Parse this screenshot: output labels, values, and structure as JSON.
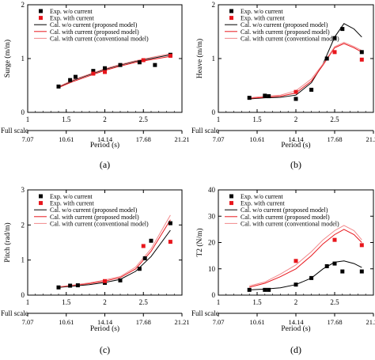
{
  "full_scale_label": "Full scale",
  "colors": {
    "black": "#000000",
    "red": "#e8161c",
    "light_red": "#f2898b"
  },
  "chart_data": [
    {
      "type": "line",
      "panel_label": "(a)",
      "xlabel": "Period (s)",
      "ylabel": "Surge (m/m)",
      "xlim": [
        1,
        3
      ],
      "ylim": [
        0,
        2
      ],
      "xticks": [
        1,
        1.5,
        2,
        2.5
      ],
      "yticks": [
        0,
        1,
        2
      ],
      "fullscale_ticks": [
        {
          "x": 1,
          "label": "7.07"
        },
        {
          "x": 1.5,
          "label": "10.61"
        },
        {
          "x": 2,
          "label": "14.14"
        },
        {
          "x": 2.5,
          "label": "17.68"
        },
        {
          "x": 3,
          "label": "21.21"
        }
      ],
      "legend": [
        {
          "label": "Exp. w/o current",
          "kind": "square",
          "color": "#000000"
        },
        {
          "label": "Exp. with current",
          "kind": "square",
          "color": "#e8161c"
        },
        {
          "label": "Cal. w/o current (proposed model)",
          "kind": "line",
          "color": "#000000"
        },
        {
          "label": "Cal. with current (proposed model)",
          "kind": "line",
          "color": "#e8161c"
        },
        {
          "label": "Cal. with current (conventional model)",
          "kind": "line",
          "color": "#f2898b"
        }
      ],
      "series": [
        {
          "name": "Exp. w/o current",
          "kind": "square",
          "color": "#000000",
          "x": [
            1.4,
            1.55,
            1.62,
            1.85,
            2.0,
            2.2,
            2.45,
            2.65,
            2.85
          ],
          "y": [
            0.48,
            0.6,
            0.66,
            0.77,
            0.82,
            0.88,
            0.93,
            0.88,
            1.07
          ]
        },
        {
          "name": "Exp. with current",
          "kind": "square",
          "color": "#e8161c",
          "x": [
            1.85,
            2.0,
            2.5,
            2.85
          ],
          "y": [
            0.72,
            0.75,
            0.97,
            1.05
          ]
        },
        {
          "name": "Cal. w/o current (proposed model)",
          "kind": "line",
          "color": "#000000",
          "x": [
            1.4,
            1.6,
            1.8,
            2.0,
            2.2,
            2.4,
            2.6,
            2.85
          ],
          "y": [
            0.47,
            0.6,
            0.7,
            0.8,
            0.88,
            0.95,
            1.0,
            1.07
          ]
        },
        {
          "name": "Cal. with current (proposed model)",
          "kind": "line",
          "color": "#e8161c",
          "x": [
            1.4,
            1.6,
            1.8,
            2.0,
            2.2,
            2.4,
            2.6,
            2.85
          ],
          "y": [
            0.46,
            0.58,
            0.68,
            0.78,
            0.86,
            0.93,
            0.98,
            1.04
          ]
        },
        {
          "name": "Cal. with current (conventional model)",
          "kind": "line",
          "color": "#f2898b",
          "x": [
            1.4,
            1.6,
            1.8,
            2.0,
            2.2,
            2.4,
            2.6,
            2.85
          ],
          "y": [
            0.48,
            0.61,
            0.71,
            0.81,
            0.89,
            0.96,
            1.02,
            1.09
          ]
        }
      ]
    },
    {
      "type": "line",
      "panel_label": "(b)",
      "xlabel": "Period (s)",
      "ylabel": "Heave (m/m)",
      "xlim": [
        1,
        3
      ],
      "ylim": [
        0,
        2
      ],
      "xticks": [
        1,
        1.5,
        2,
        2.5
      ],
      "yticks": [
        0,
        1,
        2
      ],
      "fullscale_ticks": [
        {
          "x": 1,
          "label": "7.07"
        },
        {
          "x": 1.5,
          "label": "10.61"
        },
        {
          "x": 2,
          "label": "14.14"
        },
        {
          "x": 2.5,
          "label": "17.68"
        },
        {
          "x": 3,
          "label": "21.21"
        }
      ],
      "legend": [
        {
          "label": "Exp. w/o current",
          "kind": "square",
          "color": "#000000"
        },
        {
          "label": "Exp. with current",
          "kind": "square",
          "color": "#e8161c"
        },
        {
          "label": "Cal. w/o current (proposed model)",
          "kind": "line",
          "color": "#000000"
        },
        {
          "label": "Cal. with current (proposed model)",
          "kind": "line",
          "color": "#e8161c"
        },
        {
          "label": "Cal. with current (conventional model)",
          "kind": "line",
          "color": "#f2898b"
        }
      ],
      "series": [
        {
          "name": "Exp. w/o current",
          "kind": "square",
          "color": "#000000",
          "x": [
            1.4,
            1.6,
            1.65,
            2.0,
            2.2,
            2.4,
            2.5,
            2.6,
            2.85
          ],
          "y": [
            0.27,
            0.31,
            0.3,
            0.25,
            0.42,
            1.0,
            1.38,
            1.55,
            1.12
          ]
        },
        {
          "name": "Exp. with current",
          "kind": "square",
          "color": "#e8161c",
          "x": [
            2.0,
            2.5,
            2.85
          ],
          "y": [
            0.38,
            1.12,
            0.98
          ]
        },
        {
          "name": "Cal. w/o current (proposed model)",
          "kind": "line",
          "color": "#000000",
          "x": [
            1.4,
            1.6,
            1.8,
            2.0,
            2.2,
            2.35,
            2.5,
            2.62,
            2.75,
            2.85
          ],
          "y": [
            0.25,
            0.27,
            0.28,
            0.32,
            0.55,
            0.9,
            1.4,
            1.65,
            1.55,
            1.4
          ]
        },
        {
          "name": "Cal. with current (proposed model)",
          "kind": "line",
          "color": "#e8161c",
          "x": [
            1.4,
            1.6,
            1.8,
            2.0,
            2.2,
            2.35,
            2.5,
            2.62,
            2.75,
            2.85
          ],
          "y": [
            0.26,
            0.28,
            0.3,
            0.36,
            0.58,
            0.88,
            1.2,
            1.28,
            1.2,
            1.12
          ]
        },
        {
          "name": "Cal. with current (conventional model)",
          "kind": "line",
          "color": "#f2898b",
          "x": [
            1.4,
            1.6,
            1.8,
            2.0,
            2.2,
            2.35,
            2.5,
            2.62,
            2.75,
            2.85
          ],
          "y": [
            0.27,
            0.3,
            0.32,
            0.4,
            0.62,
            0.9,
            1.22,
            1.3,
            1.22,
            1.15
          ]
        }
      ]
    },
    {
      "type": "line",
      "panel_label": "(c)",
      "xlabel": "Period (s)",
      "ylabel": "Pitch (rad/m)",
      "xlim": [
        1,
        3
      ],
      "ylim": [
        0,
        3
      ],
      "xticks": [
        1,
        1.5,
        2,
        2.5
      ],
      "yticks": [
        0,
        1,
        2,
        3
      ],
      "fullscale_ticks": [
        {
          "x": 1,
          "label": "7.07"
        },
        {
          "x": 1.5,
          "label": "10.61"
        },
        {
          "x": 2,
          "label": "14.14"
        },
        {
          "x": 2.5,
          "label": "17.68"
        },
        {
          "x": 3,
          "label": "21.21"
        }
      ],
      "legend": [
        {
          "label": "Exp. w/o current",
          "kind": "square",
          "color": "#000000"
        },
        {
          "label": "Exp. with current",
          "kind": "square",
          "color": "#e8161c"
        },
        {
          "label": "Cal. w/o current (proposed model)",
          "kind": "line",
          "color": "#000000"
        },
        {
          "label": "Cal. with current (proposed model)",
          "kind": "line",
          "color": "#e8161c"
        },
        {
          "label": "Cal. with current (conventional model)",
          "kind": "line",
          "color": "#f2898b"
        }
      ],
      "series": [
        {
          "name": "Exp. w/o current",
          "kind": "square",
          "color": "#000000",
          "x": [
            1.4,
            1.55,
            1.65,
            2.0,
            2.2,
            2.45,
            2.52,
            2.6,
            2.85
          ],
          "y": [
            0.22,
            0.27,
            0.28,
            0.35,
            0.42,
            0.75,
            1.05,
            1.55,
            2.05
          ]
        },
        {
          "name": "Exp. with current",
          "kind": "square",
          "color": "#e8161c",
          "x": [
            2.0,
            2.5,
            2.85
          ],
          "y": [
            0.4,
            1.4,
            1.52
          ]
        },
        {
          "name": "Cal. w/o current (proposed model)",
          "kind": "line",
          "color": "#000000",
          "x": [
            1.4,
            1.6,
            1.8,
            2.0,
            2.2,
            2.4,
            2.6,
            2.85
          ],
          "y": [
            0.22,
            0.26,
            0.3,
            0.36,
            0.45,
            0.68,
            1.1,
            1.85
          ]
        },
        {
          "name": "Cal. with current (proposed model)",
          "kind": "line",
          "color": "#e8161c",
          "x": [
            1.4,
            1.6,
            1.8,
            2.0,
            2.2,
            2.4,
            2.6,
            2.85
          ],
          "y": [
            0.23,
            0.28,
            0.33,
            0.4,
            0.5,
            0.75,
            1.25,
            2.15
          ]
        },
        {
          "name": "Cal. with current (conventional model)",
          "kind": "line",
          "color": "#f2898b",
          "x": [
            1.4,
            1.6,
            1.8,
            2.0,
            2.2,
            2.4,
            2.6,
            2.85
          ],
          "y": [
            0.24,
            0.29,
            0.35,
            0.43,
            0.53,
            0.8,
            1.32,
            2.28
          ]
        }
      ]
    },
    {
      "type": "line",
      "panel_label": "(d)",
      "xlabel": "Period (s)",
      "ylabel": "T2 (N/m)",
      "xlim": [
        1,
        3
      ],
      "ylim": [
        0,
        40
      ],
      "xticks": [
        1,
        1.5,
        2,
        2.5
      ],
      "yticks": [
        0,
        10,
        20,
        30,
        40
      ],
      "fullscale_ticks": [
        {
          "x": 1,
          "label": "7.07"
        },
        {
          "x": 1.5,
          "label": "10.61"
        },
        {
          "x": 2,
          "label": "14.14"
        },
        {
          "x": 2.5,
          "label": "17.68"
        },
        {
          "x": 3,
          "label": "21.21"
        }
      ],
      "legend": [
        {
          "label": "Exp. w/o current",
          "kind": "square",
          "color": "#000000"
        },
        {
          "label": "Exp. with current",
          "kind": "square",
          "color": "#e8161c"
        },
        {
          "label": "Cal. w/o current (proposed model)",
          "kind": "line",
          "color": "#000000"
        },
        {
          "label": "Cal. with current (proposed model)",
          "kind": "line",
          "color": "#e8161c"
        },
        {
          "label": "Cal. with current (conventional model)",
          "kind": "line",
          "color": "#f2898b"
        }
      ],
      "series": [
        {
          "name": "Exp. w/o current",
          "kind": "square",
          "color": "#000000",
          "x": [
            1.4,
            1.6,
            1.65,
            2.0,
            2.2,
            2.4,
            2.5,
            2.6,
            2.85
          ],
          "y": [
            2.0,
            2.0,
            2.0,
            4.0,
            6.5,
            11.0,
            12.0,
            9.0,
            9.0
          ]
        },
        {
          "name": "Exp. with current",
          "kind": "square",
          "color": "#e8161c",
          "x": [
            2.0,
            2.5,
            2.85
          ],
          "y": [
            13.0,
            21.0,
            19.0
          ]
        },
        {
          "name": "Cal. w/o current (proposed model)",
          "kind": "line",
          "color": "#000000",
          "x": [
            1.4,
            1.6,
            1.8,
            2.0,
            2.2,
            2.35,
            2.5,
            2.62,
            2.75,
            2.85
          ],
          "y": [
            2.0,
            2.3,
            2.8,
            4.0,
            6.5,
            10.0,
            12.5,
            13.0,
            12.0,
            10.5
          ]
        },
        {
          "name": "Cal. with current (proposed model)",
          "kind": "line",
          "color": "#e8161c",
          "x": [
            1.4,
            1.6,
            1.8,
            2.0,
            2.2,
            2.35,
            2.5,
            2.62,
            2.75,
            2.85
          ],
          "y": [
            3.0,
            4.5,
            7.0,
            10.0,
            15.0,
            19.5,
            23.0,
            25.0,
            23.0,
            20.0
          ]
        },
        {
          "name": "Cal. with current (conventional model)",
          "kind": "line",
          "color": "#f2898b",
          "x": [
            1.4,
            1.6,
            1.8,
            2.0,
            2.2,
            2.35,
            2.5,
            2.62,
            2.75,
            2.85
          ],
          "y": [
            3.5,
            5.0,
            8.0,
            11.5,
            16.5,
            21.0,
            24.5,
            26.5,
            24.5,
            21.0
          ]
        }
      ]
    }
  ]
}
